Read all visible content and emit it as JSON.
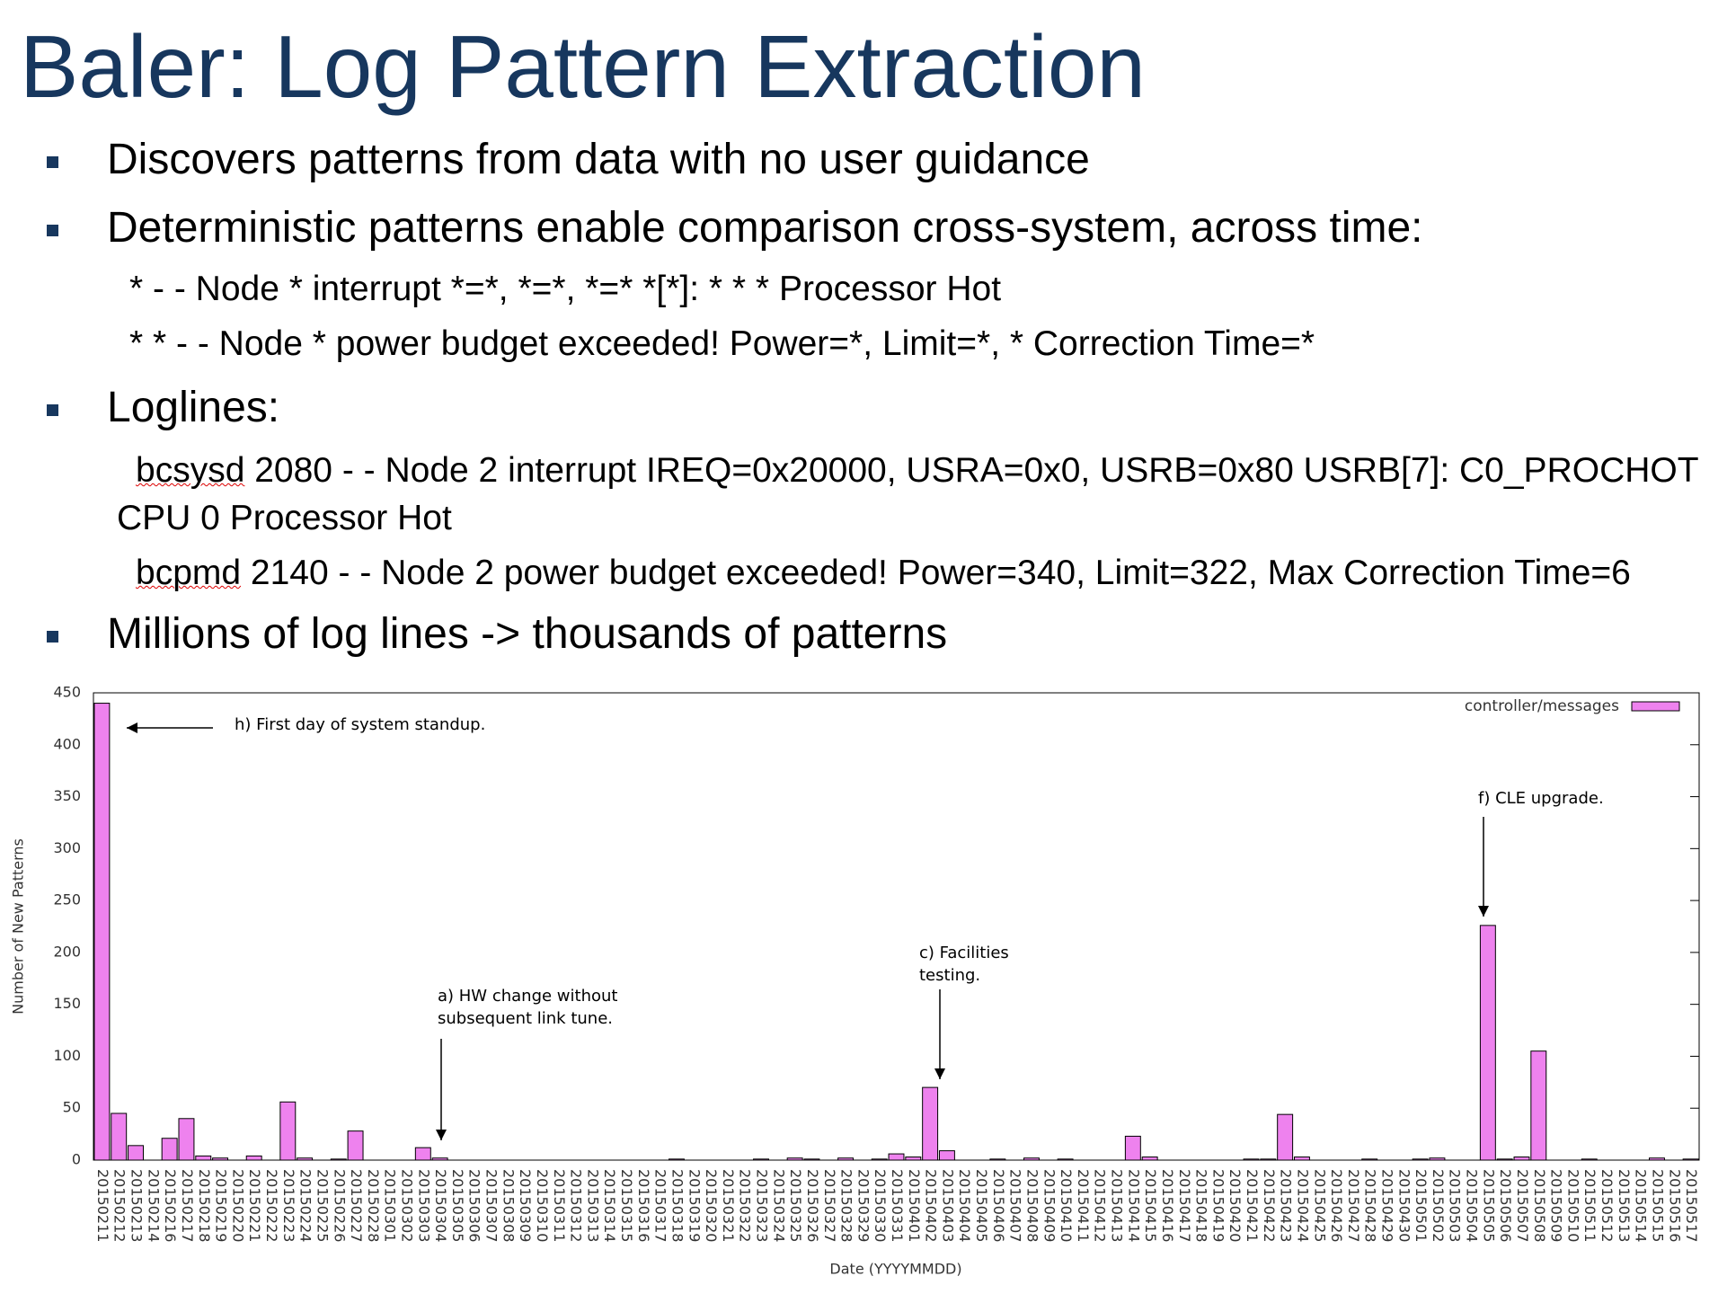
{
  "header": {
    "title": "Baler: Log Pattern Extraction"
  },
  "bullets": [
    {
      "text": "Discovers patterns from data with no user guidance"
    },
    {
      "text": "Deterministic patterns enable comparison cross-system, across time:",
      "lines": [
        "* - -  Node * interrupt *=*, *=*, *=* *[*]: * * * Processor Hot",
        "* * - -  Node * power budget exceeded! Power=*, Limit=*, * Correction Time=*"
      ]
    },
    {
      "text": "Loglines:",
      "loglines": [
        {
          "program": "bcsysd",
          "message": "2080 - -  Node 2 interrupt IREQ=0x20000, USRA=0x0, USRB=0x80 USRB[7]: C0_PROCHOT CPU 0 Processor Hot"
        },
        {
          "program": "bcpmd",
          "message": "2140 - -  Node 2 power budget exceeded! Power=340, Limit=322, Max Correction Time=6"
        }
      ]
    },
    {
      "text": "Millions of log lines -> thousands of patterns"
    }
  ],
  "chart_data": {
    "type": "bar",
    "x_label": "Date (YYYYMMDD)",
    "y_label": "Number of New Patterns",
    "categories": [
      "20150211",
      "20150212",
      "20150213",
      "20150214",
      "20150216",
      "20150217",
      "20150218",
      "20150219",
      "20150220",
      "20150221",
      "20150222",
      "20150223",
      "20150224",
      "20150225",
      "20150226",
      "20150227",
      "20150228",
      "20150301",
      "20150302",
      "20150303",
      "20150304",
      "20150305",
      "20150306",
      "20150307",
      "20150308",
      "20150309",
      "20150310",
      "20150311",
      "20150312",
      "20150313",
      "20150314",
      "20150315",
      "20150316",
      "20150317",
      "20150318",
      "20150319",
      "20150320",
      "20150321",
      "20150322",
      "20150323",
      "20150324",
      "20150325",
      "20150326",
      "20150327",
      "20150328",
      "20150329",
      "20150330",
      "20150331",
      "20150401",
      "20150402",
      "20150403",
      "20150404",
      "20150405",
      "20150406",
      "20150407",
      "20150408",
      "20150409",
      "20150410",
      "20150411",
      "20150412",
      "20150413",
      "20150414",
      "20150415",
      "20150416",
      "20150417",
      "20150418",
      "20150419",
      "20150420",
      "20150421",
      "20150422",
      "20150423",
      "20150424",
      "20150425",
      "20150426",
      "20150427",
      "20150428",
      "20150429",
      "20150430",
      "20150501",
      "20150502",
      "20150503",
      "20150504",
      "20150505",
      "20150506",
      "20150507",
      "20150508",
      "20150509",
      "20150510",
      "20150511",
      "20150512",
      "20150513",
      "20150514",
      "20150515",
      "20150516",
      "20150517"
    ],
    "series": [
      {
        "name": "controller/messages",
        "color": "#ee82ee",
        "values": [
          440,
          45,
          14,
          0,
          21,
          40,
          4,
          2,
          0,
          4,
          0,
          56,
          2,
          0,
          1,
          28,
          0,
          0,
          0,
          12,
          2,
          0,
          0,
          0,
          0,
          0,
          0,
          0,
          0,
          0,
          0,
          0,
          0,
          0,
          1,
          0,
          0,
          0,
          0,
          1,
          0,
          2,
          1,
          0,
          2,
          0,
          1,
          6,
          3,
          70,
          9,
          0,
          0,
          1,
          0,
          2,
          0,
          1,
          0,
          0,
          0,
          23,
          3,
          0,
          0,
          0,
          0,
          0,
          1,
          1,
          44,
          3,
          0,
          0,
          0,
          1,
          0,
          0,
          1,
          2,
          0,
          0,
          226,
          1,
          3,
          105,
          0,
          0,
          1,
          0,
          0,
          0,
          2,
          0,
          1
        ]
      }
    ],
    "ylim": [
      0,
      450
    ],
    "yticks": [
      0,
      50,
      100,
      150,
      200,
      250,
      300,
      350,
      400,
      450
    ],
    "grid": false,
    "legend": "top-right",
    "annotations": [
      [
        "h) First day of system standup."
      ],
      [
        "a) HW change without",
        "subsequent link tune."
      ],
      [
        "c) Facilities",
        "testing."
      ],
      [
        "f) CLE upgrade."
      ]
    ]
  }
}
